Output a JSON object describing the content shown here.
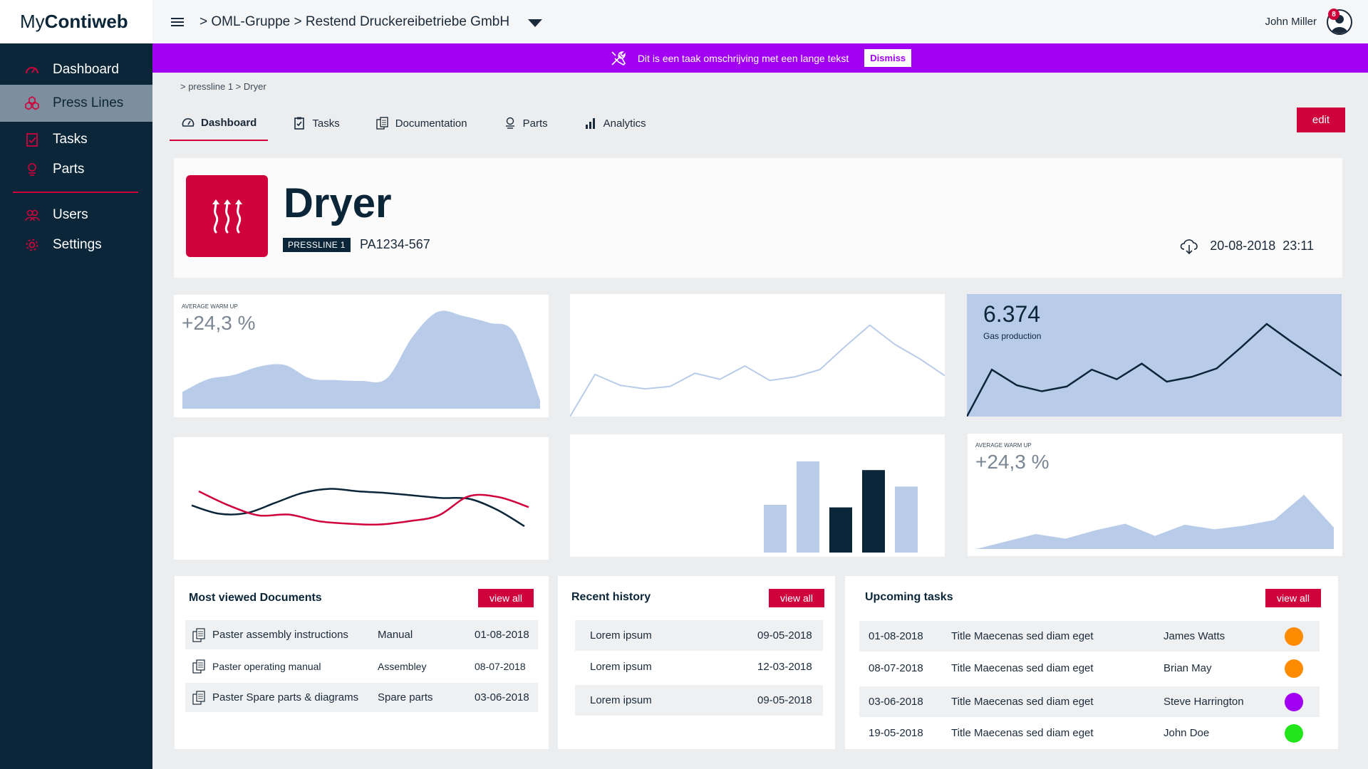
{
  "app": {
    "logo_light": "My",
    "logo_bold": "Contiweb"
  },
  "sidebar": {
    "items": [
      {
        "label": "Dashboard",
        "icon": "gauge-icon"
      },
      {
        "label": "Press Lines",
        "icon": "hexagons-icon",
        "active": true
      },
      {
        "label": "Tasks",
        "icon": "clipboard-icon"
      },
      {
        "label": "Parts",
        "icon": "parts-icon"
      },
      {
        "label": "Users",
        "icon": "users-icon"
      },
      {
        "label": "Settings",
        "icon": "gear-icon"
      }
    ]
  },
  "topbar": {
    "breadcrumb": "> OML-Gruppe > Restend Druckereibetriebe GmbH",
    "user_name": "John Miller",
    "notification_count": "8"
  },
  "banner": {
    "text": "Dit is een taak omschrijving met een lange tekst",
    "dismiss_label": "Dismiss",
    "color": "#a100f2"
  },
  "subcrumb": "> pressline 1 > Dryer",
  "tabs": [
    {
      "label": "Dashboard",
      "icon": "gauge-icon",
      "active": true
    },
    {
      "label": "Tasks",
      "icon": "clipboard-icon"
    },
    {
      "label": "Documentation",
      "icon": "documents-icon"
    },
    {
      "label": "Parts",
      "icon": "parts-icon"
    },
    {
      "label": "Analytics",
      "icon": "analytics-icon"
    }
  ],
  "edit_label": "edit",
  "device": {
    "title": "Dryer",
    "badge": "PRESSLINE 1",
    "serial": "PA1234-567",
    "sync_date": "20-08-2018",
    "sync_time": "23:11",
    "icon": "heat-icon"
  },
  "kpi1": {
    "label": "AVERAGE WARM UP",
    "value": "+24,3 %"
  },
  "kpi3": {
    "value": "6.374",
    "label": "Gas production"
  },
  "kpi6": {
    "label": "AVERAGE WARM UP",
    "value": "+24,3 %"
  },
  "chart_data": [
    {
      "type": "area",
      "values": [
        2,
        3.5,
        4,
        5,
        5.2,
        3.6,
        3.4,
        3.3,
        3.6,
        8.5,
        11.5,
        11,
        10.2,
        9,
        1
      ]
    },
    {
      "type": "line",
      "values": [
        0,
        3.5,
        2.6,
        2.3,
        2.5,
        3.6,
        3.1,
        4.2,
        3,
        3.3,
        3.9,
        5.8,
        7.6,
        6,
        4.8,
        3.4
      ]
    },
    {
      "type": "line",
      "values": [
        0,
        3.9,
        2.6,
        2.1,
        2.5,
        3.9,
        3.1,
        4.4,
        2.9,
        3.3,
        4,
        5.8,
        7.7,
        6.2,
        4.8,
        3.4
      ]
    },
    {
      "type": "line",
      "series": [
        {
          "values": [
            5.5,
            4.5,
            4.6,
            5.8,
            7,
            7.5,
            7.2,
            7,
            6.7,
            6.4,
            6.3,
            5,
            3
          ]
        },
        {
          "values": [
            7.2,
            5.5,
            4.3,
            4.4,
            3.6,
            3.3,
            3.2,
            3.6,
            4.3,
            6.6,
            6.5,
            5.3
          ]
        }
      ]
    },
    {
      "type": "bar",
      "values": [
        55,
        105,
        52,
        95,
        76
      ],
      "colors": [
        "#b8ccea",
        "#b8ccea",
        "#0b2638",
        "#0b2638",
        "#b8ccea"
      ]
    },
    {
      "type": "area",
      "values": [
        0,
        0.8,
        1.6,
        1.1,
        2,
        2.7,
        1.4,
        2.6,
        2.1,
        2.5,
        3.1,
        5.8,
        2.3
      ]
    }
  ],
  "documents": {
    "title": "Most viewed Documents",
    "view_all": "view all",
    "rows": [
      {
        "name": "Paster assembly instructions",
        "type": "Manual",
        "date": "01-08-2018"
      },
      {
        "name": "Paster operating manual",
        "type": "Assembley",
        "date": "08-07-2018"
      },
      {
        "name": "Paster Spare parts & diagrams",
        "type": "Spare parts",
        "date": "03-06-2018"
      }
    ]
  },
  "history": {
    "title": "Recent history",
    "view_all": "view all",
    "rows": [
      {
        "name": "Lorem ipsum",
        "date": "09-05-2018"
      },
      {
        "name": "Lorem ipsum",
        "date": "12-03-2018"
      },
      {
        "name": "Lorem ipsum",
        "date": "09-05-2018"
      }
    ]
  },
  "tasks": {
    "title": "Upcoming tasks",
    "view_all": "view all",
    "rows": [
      {
        "date": "01-08-2018",
        "title": "Title Maecenas sed diam eget",
        "assignee": "James Watts",
        "status_color": "#ff8c00"
      },
      {
        "date": "08-07-2018",
        "title": "Title Maecenas sed diam eget",
        "assignee": "Brian May",
        "status_color": "#ff8c00"
      },
      {
        "date": "03-06-2018",
        "title": "Title Maecenas sed diam eget",
        "assignee": "Steve Harrington",
        "status_color": "#a100f2"
      },
      {
        "date": "19-05-2018",
        "title": "Title Maecenas sed diam eget",
        "assignee": "John Doe",
        "status_color": "#22e61b"
      }
    ]
  }
}
